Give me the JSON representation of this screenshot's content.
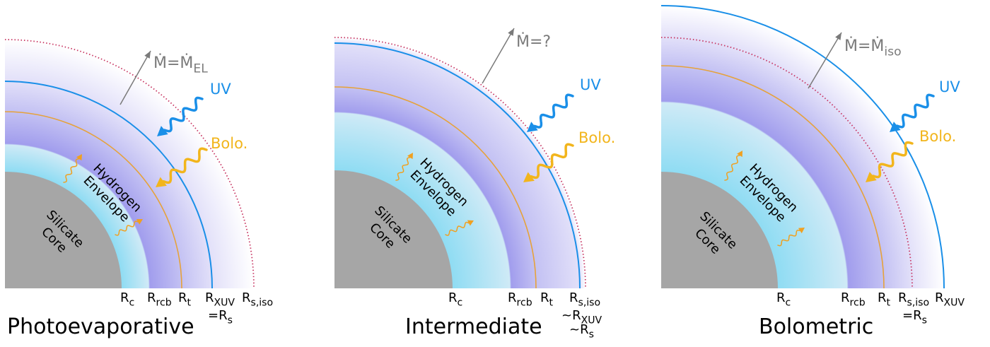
{
  "panels": [
    {
      "title": "Photoevaporative",
      "mass_loss": {
        "text": "Ṁ=Ṁ",
        "sub": "EL"
      },
      "uv": "UV",
      "bolo": "Bolo.",
      "core": [
        "Silicate",
        "Core"
      ],
      "envelope": [
        "Hydrogen",
        "Envelope"
      ],
      "radii": [
        {
          "text": "R",
          "sub": "c"
        },
        {
          "text": "R",
          "sub": "rcb"
        },
        {
          "text": "R",
          "sub": "t"
        },
        {
          "text": "R",
          "sub": "XUV"
        },
        {
          "text": "=R",
          "sub": "s"
        },
        {
          "text": "R",
          "sub": "s,iso"
        }
      ]
    },
    {
      "title": "Intermediate",
      "mass_loss": {
        "text": "Ṁ=?"
      },
      "uv": "UV",
      "bolo": "Bolo.",
      "core": [
        "Silicate",
        "Core"
      ],
      "envelope": [
        "Hydrogen",
        "Envelope"
      ],
      "radii": [
        {
          "text": "R",
          "sub": "c"
        },
        {
          "text": "R",
          "sub": "rcb"
        },
        {
          "text": "R",
          "sub": "t"
        },
        {
          "text": "R",
          "sub": "s,iso"
        },
        {
          "text": "~R",
          "sub": "XUV"
        },
        {
          "text": "~R",
          "sub": "s"
        }
      ]
    },
    {
      "title": "Bolometric",
      "mass_loss": {
        "text": "Ṁ=Ṁ",
        "sub": "iso"
      },
      "uv": "UV",
      "bolo": "Bolo.",
      "core": [
        "Silicate",
        "Core"
      ],
      "envelope": [
        "Hydrogen",
        "Envelope"
      ],
      "radii": [
        {
          "text": "R",
          "sub": "c"
        },
        {
          "text": "R",
          "sub": "rcb"
        },
        {
          "text": "R",
          "sub": "t"
        },
        {
          "text": "R",
          "sub": "s,iso"
        },
        {
          "text": "R",
          "sub": "XUV"
        },
        {
          "text": "=R",
          "sub": "s"
        }
      ]
    }
  ]
}
